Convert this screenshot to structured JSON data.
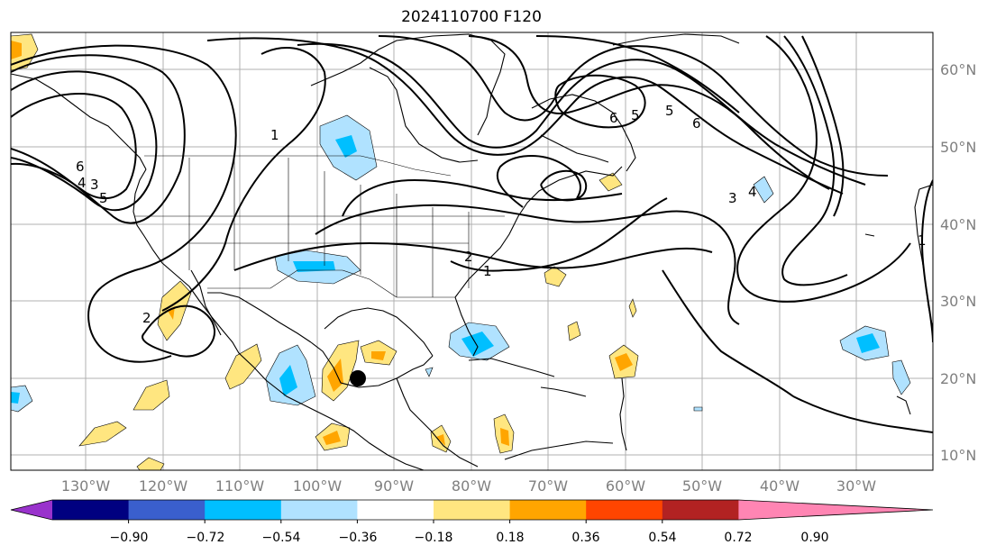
{
  "title": "2024110700 F120",
  "colors": {
    "background": "#ffffff",
    "gridline": "#b0b0b0",
    "coast": "#000000",
    "contour": "#000000",
    "marker": "#000000"
  },
  "longitude_labels": [
    "130°W",
    "120°W",
    "110°W",
    "100°W",
    "90°W",
    "80°W",
    "70°W",
    "60°W",
    "50°W",
    "40°W",
    "30°W"
  ],
  "latitude_labels": [
    "60°N",
    "50°N",
    "40°N",
    "30°N",
    "20°N",
    "10°N"
  ],
  "contour_labels": [
    "1",
    "1",
    "1",
    "2",
    "2",
    "3",
    "3",
    "4",
    "5",
    "5",
    "6",
    "6",
    "4",
    "5",
    "6"
  ],
  "colorbar": {
    "colors": [
      "#9932cc",
      "#000080",
      "#3a5fcd",
      "#00bfff",
      "#b0e2ff",
      "#ffffff",
      "#ffe680",
      "#ffa500",
      "#ff4500",
      "#b22222",
      "#ff85b3"
    ],
    "tick_labels": [
      "−0.90",
      "−0.72",
      "−0.54",
      "−0.36",
      "−0.18",
      "0.18",
      "0.36",
      "0.54",
      "0.72",
      "0.90"
    ]
  },
  "marker": {
    "label": "storm-position",
    "lon": -94.5,
    "lat": 20.0
  }
}
